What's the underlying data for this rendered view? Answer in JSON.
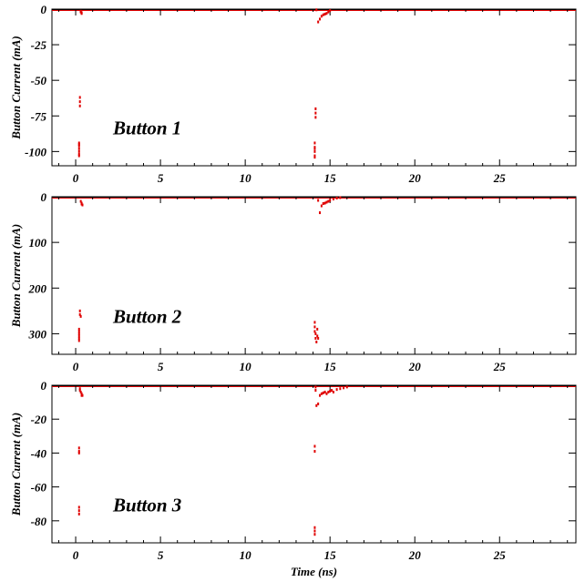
{
  "chart_data": [
    {
      "type": "scatter",
      "annotation": "Button 1",
      "ylabel": "Button Current (mA)",
      "xlabel": "",
      "xlim": [
        -1.4,
        29.5
      ],
      "ylim": [
        -110,
        0
      ],
      "xticks": [
        "0",
        "5",
        "10",
        "15",
        "20",
        "25"
      ],
      "yticks": [
        "0",
        "-25",
        "-50",
        "-75",
        "-100"
      ],
      "grid": false,
      "marker_color": "#e00000",
      "series": [
        {
          "x": [
            0.2,
            0.2,
            0.2,
            0.2,
            0.2,
            0.2,
            0.2,
            0.25,
            0.25,
            0.25,
            0.3,
            0.3,
            0.35,
            0.35,
            0.35,
            14.1,
            14.1,
            14.1,
            14.1,
            14.1,
            14.1,
            14.15,
            14.15,
            14.15,
            14.2,
            14.3,
            14.4,
            14.5,
            14.6,
            14.7,
            14.8,
            14.9,
            15.0
          ],
          "y": [
            -94,
            -96,
            -98,
            -100,
            -102,
            -103,
            -95,
            -62,
            -65,
            -68,
            -1.5,
            -2.0,
            -2.5,
            -3.0,
            -3.0,
            -94,
            -97,
            -100,
            -103,
            -104,
            -98,
            -70,
            -73,
            -76,
            -0.5,
            -9,
            -7,
            -5,
            -4,
            -3.5,
            -3,
            -2,
            -1
          ]
        }
      ]
    },
    {
      "type": "scatter",
      "annotation": "Button 2",
      "ylabel": "Button Current (mA)",
      "xlabel": "",
      "xlim": [
        -1.4,
        29.5
      ],
      "ylim": [
        -345,
        0
      ],
      "xticks": [
        "0",
        "5",
        "10",
        "15",
        "20",
        "25"
      ],
      "yticks": [
        "0",
        "100",
        "200",
        "300"
      ],
      "ytick_values": [
        0,
        -100,
        -200,
        -300
      ],
      "grid": false,
      "marker_color": "#e00000",
      "series": [
        {
          "x": [
            0.2,
            0.2,
            0.2,
            0.2,
            0.2,
            0.2,
            0.25,
            0.25,
            0.3,
            0.3,
            0.35,
            0.35,
            0.4,
            14.1,
            14.1,
            14.1,
            14.15,
            14.15,
            14.2,
            14.25,
            14.25,
            14.3,
            14.3,
            14.4,
            14.5,
            14.6,
            14.7,
            14.8,
            14.9,
            15.0,
            15.2,
            15.4,
            15.6
          ],
          "y": [
            -290,
            -295,
            -300,
            -305,
            -310,
            -315,
            -250,
            -258,
            -262,
            -10,
            -14,
            -16,
            -18,
            -275,
            -285,
            -295,
            -300,
            -310,
            -318,
            -290,
            -305,
            -310,
            -8,
            -35,
            -20,
            -15,
            -14,
            -12,
            -10,
            -8,
            -5,
            -3,
            -2
          ]
        }
      ]
    },
    {
      "type": "scatter",
      "annotation": "Button 3",
      "ylabel": "Button Current (mA)",
      "xlabel": "Time (ns)",
      "xlim": [
        -1.4,
        29.5
      ],
      "ylim": [
        -93,
        0
      ],
      "xticks": [
        "0",
        "5",
        "10",
        "15",
        "20",
        "25"
      ],
      "yticks": [
        "0",
        "-20",
        "-40",
        "-60",
        "-80"
      ],
      "grid": false,
      "marker_color": "#e00000",
      "series": [
        {
          "x": [
            0.2,
            0.2,
            0.2,
            0.2,
            0.2,
            0.2,
            0.25,
            0.25,
            0.3,
            0.35,
            0.35,
            0.4,
            14.1,
            14.1,
            14.1,
            14.1,
            14.1,
            14.15,
            14.15,
            14.2,
            14.3,
            14.4,
            14.5,
            14.6,
            14.7,
            14.8,
            14.9,
            15.0,
            15.1,
            15.2,
            15.4,
            15.6,
            15.8,
            16.0
          ],
          "y": [
            -72,
            -74,
            -76,
            -37,
            -39,
            -40,
            -2,
            -3,
            -4,
            -5,
            -6,
            -6,
            -84,
            -86,
            -88,
            -36,
            -39,
            -1,
            -3,
            -12,
            -11,
            -6,
            -5,
            -4.5,
            -4,
            -5,
            -4,
            -3.5,
            -3,
            -4,
            -2.5,
            -2,
            -1.5,
            -1
          ]
        }
      ]
    }
  ]
}
